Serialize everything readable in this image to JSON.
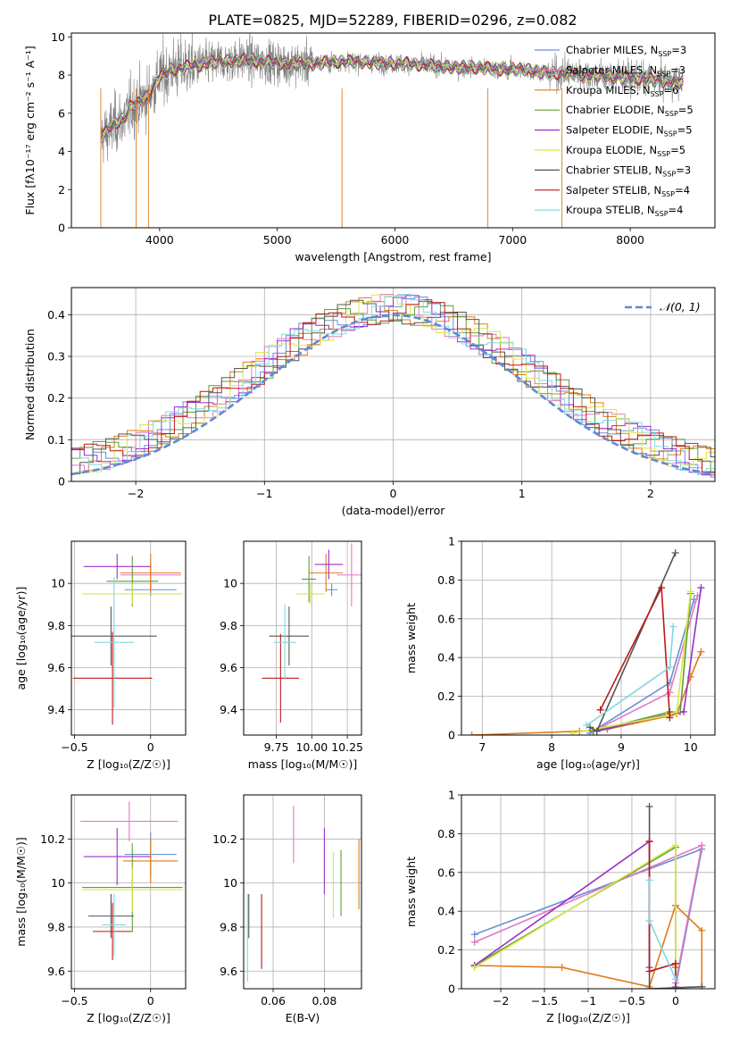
{
  "figure_title": "PLATE=0825, MJD=52289, FIBERID=0296, z=0.082",
  "chart_data": [
    {
      "id": "spectrum",
      "type": "line",
      "xlabel": "wavelength [Angstrom, rest frame]",
      "ylabel": "Flux [fλ10⁻¹⁷ erg cm⁻² s⁻¹ A⁻¹]",
      "xlim": [
        3250,
        8720
      ],
      "ylim": [
        0,
        10.2
      ],
      "xticks": [
        4000,
        5000,
        6000,
        7000,
        8000
      ],
      "yticks": [
        0,
        2,
        4,
        6,
        8,
        10
      ],
      "grid": false,
      "legend_position": "top-right",
      "series": [
        {
          "name": "Chabrier MILES, N_SSP=3",
          "label_main": "Chabrier MILES, N",
          "label_sub": "SSP",
          "label_tail": "=3",
          "color": "#6b8fd6"
        },
        {
          "name": "Salpeter MILES, N_SSP=3",
          "label_main": "Salpeter MILES, N",
          "label_sub": "SSP",
          "label_tail": "=3",
          "color": "#e377c2"
        },
        {
          "name": "Kroupa MILES, N_SSP=6",
          "label_main": "Kroupa MILES, N",
          "label_sub": "SSP",
          "label_tail": "=6",
          "color": "#e07b1a"
        },
        {
          "name": "Chabrier ELODIE, N_SSP=5",
          "label_main": "Chabrier ELODIE, N",
          "label_sub": "SSP",
          "label_tail": "=5",
          "color": "#5f9e35"
        },
        {
          "name": "Salpeter ELODIE, N_SSP=5",
          "label_main": "Salpeter ELODIE, N",
          "label_sub": "SSP",
          "label_tail": "=5",
          "color": "#9b30c8"
        },
        {
          "name": "Kroupa ELODIE, N_SSP=5",
          "label_main": "Kroupa ELODIE, N",
          "label_sub": "SSP",
          "label_tail": "=5",
          "color": "#d8e84a"
        },
        {
          "name": "Chabrier STELIB, N_SSP=3",
          "label_main": "Chabrier STELIB, N",
          "label_sub": "SSP",
          "label_tail": "=3",
          "color": "#555555"
        },
        {
          "name": "Salpeter STELIB, N_SSP=4",
          "label_main": "Salpeter STELIB, N",
          "label_sub": "SSP",
          "label_tail": "=4",
          "color": "#c01818"
        },
        {
          "name": "Kroupa STELIB, N_SSP=4",
          "label_main": "Kroupa STELIB, N",
          "label_sub": "SSP",
          "label_tail": "=4",
          "color": "#7fd8e0"
        }
      ],
      "data_color": "#808080",
      "model_curve": {
        "x": [
          3500,
          3550,
          3600,
          3650,
          3700,
          3750,
          3800,
          3850,
          3900,
          3950,
          4000,
          4100,
          4200,
          4300,
          4400,
          4500,
          4700,
          4900,
          5100,
          5300,
          5500,
          5700,
          5900,
          6100,
          6300,
          6500,
          6700,
          6900,
          7100,
          7300,
          7500,
          7700,
          7900,
          8100,
          8300,
          8450
        ],
        "y": [
          4.8,
          5.0,
          5.3,
          5.6,
          5.7,
          6.3,
          6.5,
          6.7,
          6.9,
          7.4,
          7.9,
          8.3,
          8.4,
          8.5,
          8.6,
          8.7,
          8.8,
          8.7,
          8.6,
          8.6,
          8.7,
          8.7,
          8.6,
          8.6,
          8.5,
          8.4,
          8.4,
          8.3,
          8.3,
          8.1,
          8.1,
          8.0,
          7.9,
          7.8,
          7.7,
          7.6
        ]
      }
    },
    {
      "id": "residuals",
      "type": "histogram",
      "xlabel": "(data-model)/error",
      "ylabel": "Normed distribution",
      "xlim": [
        -2.5,
        2.5
      ],
      "ylim": [
        0,
        0.465
      ],
      "xticks": [
        -2,
        -1,
        0,
        1,
        2
      ],
      "yticks": [
        0.0,
        0.1,
        0.2,
        0.3,
        0.4
      ],
      "grid": true,
      "legend_position": "top-right",
      "reference_curve": {
        "name": "𝒩(0, 1)",
        "style": "dashed",
        "color": "#5b8bd6"
      },
      "bin_width": 0.1
    },
    {
      "id": "age-vs-Z",
      "type": "scatter",
      "xlabel": "Z [log₁₀(Z/Z☉)]",
      "ylabel": "age  [log₁₀(age/yr)]",
      "xlim": [
        -0.52,
        0.23
      ],
      "ylim": [
        9.28,
        10.2
      ],
      "xticks": [
        -0.5,
        0.0
      ],
      "yticks": [
        9.4,
        9.6,
        9.8,
        10.0
      ],
      "grid": true,
      "points": [
        {
          "series": "Chabrier MILES",
          "x": 0.0,
          "xerr": 0.17,
          "y": 9.97,
          "yerr": 0.03
        },
        {
          "series": "Salpeter MILES",
          "x": 0.0,
          "xerr": 0.2,
          "y": 10.04,
          "yerr": 0.06
        },
        {
          "series": "Kroupa MILES",
          "x": 0.0,
          "xerr": 0.2,
          "y": 10.05,
          "yerr": 0.09
        },
        {
          "series": "Chabrier ELODIE",
          "x": -0.12,
          "xerr": 0.17,
          "y": 10.01,
          "yerr": 0.12
        },
        {
          "series": "Salpeter ELODIE",
          "x": -0.22,
          "xerr": 0.22,
          "y": 10.08,
          "yerr": 0.06
        },
        {
          "series": "Kroupa ELODIE",
          "x": -0.12,
          "xerr": 0.33,
          "y": 9.95,
          "yerr": 0.05
        },
        {
          "series": "Chabrier STELIB",
          "x": -0.26,
          "xerr": 0.3,
          "y": 9.75,
          "yerr": 0.14
        },
        {
          "series": "Salpeter STELIB",
          "x": -0.25,
          "xerr": 0.26,
          "y": 9.55,
          "yerr": 0.22
        },
        {
          "series": "Kroupa STELIB",
          "x": -0.24,
          "xerr": 0.13,
          "y": 9.72,
          "yerr": 0.31
        }
      ]
    },
    {
      "id": "age-vs-mass",
      "type": "scatter",
      "xlabel": "mass [log₁₀(M/M☉)]",
      "ylabel": "",
      "xlim": [
        9.52,
        10.35
      ],
      "ylim": [
        9.28,
        10.2
      ],
      "xticks": [
        9.75,
        10.0,
        10.25
      ],
      "xticklabels": [
        "9.75",
        "10.00",
        "10.25"
      ],
      "yticks": [
        9.4,
        9.6,
        9.8,
        10.0
      ],
      "grid": true,
      "points": [
        {
          "series": "Chabrier MILES",
          "x": 10.14,
          "xerr": 0.04,
          "y": 9.97,
          "yerr": 0.03
        },
        {
          "series": "Salpeter MILES",
          "x": 10.28,
          "xerr": 0.1,
          "y": 10.04,
          "yerr": 0.15
        },
        {
          "series": "Kroupa MILES",
          "x": 10.1,
          "xerr": 0.12,
          "y": 10.05,
          "yerr": 0.09
        },
        {
          "series": "Chabrier ELODIE",
          "x": 9.98,
          "xerr": 0.05,
          "y": 10.02,
          "yerr": 0.11
        },
        {
          "series": "Salpeter ELODIE",
          "x": 10.12,
          "xerr": 0.1,
          "y": 10.09,
          "yerr": 0.07
        },
        {
          "series": "Kroupa ELODIE",
          "x": 9.99,
          "xerr": 0.1,
          "y": 9.95,
          "yerr": 0.05
        },
        {
          "series": "Chabrier STELIB",
          "x": 9.84,
          "xerr": 0.14,
          "y": 9.75,
          "yerr": 0.14
        },
        {
          "series": "Salpeter STELIB",
          "x": 9.78,
          "xerr": 0.13,
          "y": 9.55,
          "yerr": 0.21
        },
        {
          "series": "Kroupa STELIB",
          "x": 9.81,
          "xerr": 0.08,
          "y": 9.72,
          "yerr": 0.18
        }
      ]
    },
    {
      "id": "massweight-vs-age",
      "type": "line",
      "xlabel": "age  [log₁₀(age/yr)]",
      "ylabel": "mass weight",
      "xlim": [
        6.7,
        10.35
      ],
      "ylim": [
        0,
        1.0
      ],
      "xticks": [
        7,
        8,
        9,
        10
      ],
      "yticks": [
        0.0,
        0.2,
        0.4,
        0.6,
        0.8,
        1.0
      ],
      "grid": true,
      "series": [
        {
          "name": "Chabrier MILES",
          "x": [
            8.55,
            9.7,
            10.05
          ],
          "y": [
            0.01,
            0.27,
            0.7
          ]
        },
        {
          "name": "Salpeter MILES",
          "x": [
            8.6,
            9.7,
            10.1
          ],
          "y": [
            0.02,
            0.22,
            0.72
          ]
        },
        {
          "name": "Kroupa MILES",
          "x": [
            6.85,
            8.4,
            8.8,
            9.7,
            9.8,
            10.0,
            10.15
          ],
          "y": [
            0.0,
            0.02,
            0.03,
            0.1,
            0.11,
            0.3,
            0.43
          ]
        },
        {
          "name": "Chabrier ELODIE",
          "x": [
            8.6,
            9.7,
            9.85,
            10.0
          ],
          "y": [
            0.02,
            0.12,
            0.12,
            0.73
          ]
        },
        {
          "name": "Salpeter ELODIE",
          "x": [
            8.65,
            9.7,
            9.9,
            10.15
          ],
          "y": [
            0.02,
            0.11,
            0.12,
            0.76
          ]
        },
        {
          "name": "Kroupa ELODIE",
          "x": [
            8.3,
            9.65,
            9.8,
            10.0
          ],
          "y": [
            0.01,
            0.1,
            0.12,
            0.74
          ]
        },
        {
          "name": "Chabrier STELIB",
          "x": [
            8.55,
            8.65,
            9.78
          ],
          "y": [
            0.04,
            0.02,
            0.94
          ]
        },
        {
          "name": "Salpeter STELIB",
          "x": [
            8.7,
            9.58,
            9.7
          ],
          "y": [
            0.13,
            0.76,
            0.09
          ]
        },
        {
          "name": "Kroupa STELIB",
          "x": [
            8.5,
            9.7,
            9.75
          ],
          "y": [
            0.05,
            0.35,
            0.56
          ]
        }
      ]
    },
    {
      "id": "mass-vs-Z",
      "type": "scatter",
      "xlabel": "Z [log₁₀(Z/Z☉)]",
      "ylabel": "mass [log₁₀(M/M☉)]",
      "xlim": [
        -0.52,
        0.23
      ],
      "ylim": [
        9.52,
        10.4
      ],
      "xticks": [
        -0.5,
        0.0
      ],
      "yticks": [
        9.6,
        9.8,
        10.0,
        10.2
      ],
      "grid": true,
      "points": [
        {
          "series": "Chabrier MILES",
          "x": 0.0,
          "xerr": 0.17,
          "y": 10.13,
          "yerr": 0.1
        },
        {
          "series": "Salpeter MILES",
          "x": -0.14,
          "xerr": 0.32,
          "y": 10.28,
          "yerr": 0.09
        },
        {
          "series": "Kroupa MILES",
          "x": 0.0,
          "xerr": 0.18,
          "y": 10.1,
          "yerr": 0.1
        },
        {
          "series": "Chabrier ELODIE",
          "x": -0.12,
          "xerr": 0.33,
          "y": 9.98,
          "yerr": 0.2
        },
        {
          "series": "Salpeter ELODIE",
          "x": -0.22,
          "xerr": 0.22,
          "y": 10.12,
          "yerr": 0.13
        },
        {
          "series": "Kroupa ELODIE",
          "x": -0.12,
          "xerr": 0.33,
          "y": 9.97,
          "yerr": 0.1
        },
        {
          "series": "Chabrier STELIB",
          "x": -0.26,
          "xerr": 0.15,
          "y": 9.85,
          "yerr": 0.1
        },
        {
          "series": "Salpeter STELIB",
          "x": -0.25,
          "xerr": 0.13,
          "y": 9.78,
          "yerr": 0.13
        },
        {
          "series": "Kroupa STELIB",
          "x": -0.24,
          "xerr": 0.08,
          "y": 9.81,
          "yerr": 0.14
        }
      ]
    },
    {
      "id": "mass-vs-ebv",
      "type": "scatter",
      "xlabel": "E(B-V)",
      "ylabel": "",
      "xlim": [
        0.0485,
        0.0945
      ],
      "ylim": [
        9.52,
        10.4
      ],
      "xticks": [
        0.06,
        0.08
      ],
      "xticklabels": [
        "0.06",
        "0.08"
      ],
      "yticks": [
        9.6,
        9.8,
        10.0,
        10.2
      ],
      "grid": true,
      "points": [
        {
          "series": "Kroupa MILES",
          "x": 0.0935,
          "y": 10.04,
          "yerr": 0.16
        },
        {
          "series": "Chabrier ELODIE",
          "x": 0.0865,
          "y": 10.0,
          "yerr": 0.15
        },
        {
          "series": "Salpeter ELODIE",
          "x": 0.08,
          "y": 10.1,
          "yerr": 0.15
        },
        {
          "series": "Kroupa ELODIE",
          "x": 0.0835,
          "y": 9.99,
          "yerr": 0.15
        },
        {
          "series": "Salpeter MILES",
          "x": 0.068,
          "y": 10.22,
          "yerr": 0.13
        },
        {
          "series": "Salpeter STELIB",
          "x": 0.0555,
          "y": 9.78,
          "yerr": 0.17
        },
        {
          "series": "Chabrier STELIB",
          "x": 0.0505,
          "y": 9.85,
          "yerr": 0.1
        },
        {
          "series": "Kroupa STELIB",
          "x": 0.05,
          "y": 9.75,
          "yerr": 0.2
        }
      ]
    },
    {
      "id": "massweight-vs-Z",
      "type": "line",
      "xlabel": "Z [log₁₀(Z/Z☉)]",
      "ylabel": "mass weight",
      "xlim": [
        -2.45,
        0.45
      ],
      "ylim": [
        0,
        1.0
      ],
      "xticks": [
        -2.0,
        -1.5,
        -1.0,
        -0.5,
        0.0
      ],
      "yticks": [
        0.0,
        0.2,
        0.4,
        0.6,
        0.8,
        1.0
      ],
      "grid": true,
      "series": [
        {
          "name": "Chabrier MILES",
          "x": [
            -2.3,
            0.3,
            0.0
          ],
          "y": [
            0.28,
            0.72,
            0.01
          ]
        },
        {
          "name": "Salpeter MILES",
          "x": [
            -2.3,
            0.3,
            0.0
          ],
          "y": [
            0.24,
            0.74,
            0.03
          ]
        },
        {
          "name": "Kroupa MILES",
          "x": [
            -2.3,
            -1.3,
            -0.3,
            0.0,
            0.3,
            0.3
          ],
          "y": [
            0.12,
            0.11,
            0.01,
            0.43,
            0.3,
            0.01
          ]
        },
        {
          "name": "Chabrier ELODIE",
          "x": [
            -2.3,
            0.0,
            0.0
          ],
          "y": [
            0.12,
            0.73,
            0.11
          ]
        },
        {
          "name": "Salpeter ELODIE",
          "x": [
            -2.3,
            -0.3,
            -0.3
          ],
          "y": [
            0.12,
            0.76,
            0.11
          ]
        },
        {
          "name": "Kroupa ELODIE",
          "x": [
            -2.3,
            0.0,
            0.0
          ],
          "y": [
            0.11,
            0.74,
            0.12
          ]
        },
        {
          "name": "Chabrier STELIB",
          "x": [
            -0.3,
            -0.3,
            0.3
          ],
          "y": [
            0.94,
            0.0,
            0.01
          ]
        },
        {
          "name": "Salpeter STELIB",
          "x": [
            -0.3,
            -0.3,
            0.0,
            0.0
          ],
          "y": [
            0.76,
            0.09,
            0.13,
            0.0
          ]
        },
        {
          "name": "Kroupa STELIB",
          "x": [
            -0.3,
            -0.3,
            0.0
          ],
          "y": [
            0.56,
            0.35,
            0.05
          ]
        }
      ]
    }
  ]
}
